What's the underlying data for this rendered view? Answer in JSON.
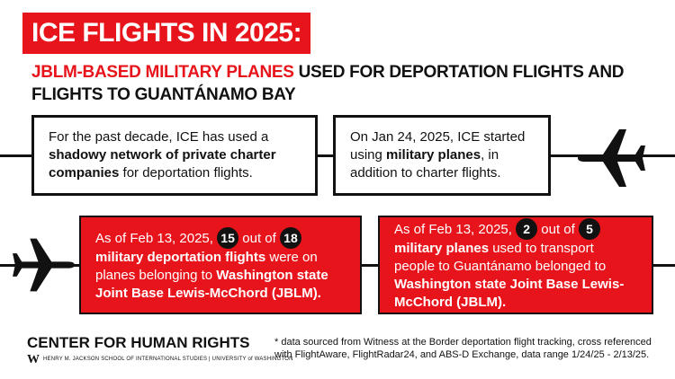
{
  "header": {
    "title": "ICE FLIGHTS IN 2025:",
    "subtitle": [
      {
        "text": "JBLM-BASED MILITARY PLANES",
        "highlight": true
      },
      {
        "text": " USED FOR DEPORTATION FLIGHTS AND FLIGHTS TO GUANTÁNAMO BAY"
      }
    ]
  },
  "boxes": [
    {
      "style": "outline",
      "runs": [
        {
          "text": "For the past decade, ICE has used a "
        },
        {
          "text": "shadowy network of private charter companies",
          "bold": true
        },
        {
          "text": " for deportation flights."
        }
      ]
    },
    {
      "style": "outline",
      "runs": [
        {
          "text": "On Jan 24, 2025, ICE started using "
        },
        {
          "text": "military planes",
          "bold": true
        },
        {
          "text": ", in addition to charter flights."
        }
      ]
    },
    {
      "style": "red",
      "runs": [
        {
          "text": "As of Feb 13, 2025, "
        },
        {
          "text": "15",
          "badge": true
        },
        {
          "text": " out of "
        },
        {
          "text": "18",
          "badge": true
        },
        {
          "text": " "
        },
        {
          "text": "military deportation flights",
          "bold": true
        },
        {
          "text": " were on planes belonging to "
        },
        {
          "text": "Washington state Joint Base Lewis-McChord (JBLM).",
          "bold": true
        }
      ]
    },
    {
      "style": "red",
      "runs": [
        {
          "text": "As of Feb 13, 2025, "
        },
        {
          "text": "2",
          "badge": true
        },
        {
          "text": " out of "
        },
        {
          "text": "5",
          "badge": true
        },
        {
          "text": " "
        },
        {
          "text": "military planes",
          "bold": true
        },
        {
          "text": " used to transport people to Guantánamo belonged to "
        },
        {
          "text": "Washington state Joint Base Lewis-McChord (JBLM).",
          "bold": true
        }
      ]
    }
  ],
  "footer": {
    "org": "CENTER FOR HUMAN RIGHTS",
    "logo": "W",
    "school": "HENRY M. JACKSON SCHOOL OF INTERNATIONAL STUDIES | UNIVERSITY of WASHINGTON",
    "note": "* data sourced from Witness at the Border deportation flight tracking, cross referenced with FlightAware, FlightRadar24, and ABS-D Exchange, data range 1/24/25 - 2/13/25."
  }
}
